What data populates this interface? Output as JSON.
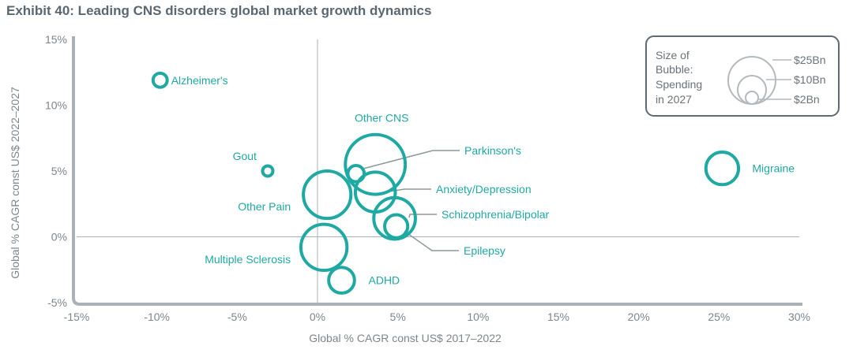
{
  "chart_data": {
    "type": "bubble",
    "title": "Exhibit 40: Leading CNS disorders global market growth dynamics",
    "xlabel": "Global % CAGR const US$ 2017–2022",
    "ylabel": "Global % CAGR const US$ 2022–2027",
    "xlim": [
      -15,
      30
    ],
    "ylim": [
      -5,
      15
    ],
    "x_ticks": [
      -15,
      -10,
      -5,
      0,
      5,
      10,
      15,
      20,
      25,
      30
    ],
    "y_ticks": [
      -5,
      0,
      5,
      10,
      15
    ],
    "x_tick_labels": [
      "-15%",
      "-10%",
      "-5%",
      "0%",
      "5%",
      "10%",
      "15%",
      "20%",
      "25%",
      "30%"
    ],
    "y_tick_labels": [
      "-5%",
      "0%",
      "5%",
      "10%",
      "15%"
    ],
    "size_unit": "Spending in 2027 (US$ Bn)",
    "points": [
      {
        "name": "Alzheimer's",
        "x": -9.8,
        "y": 11.9,
        "size": 1.5
      },
      {
        "name": "Gout",
        "x": -3.1,
        "y": 5.0,
        "size": 0.8
      },
      {
        "name": "Other CNS",
        "x": 3.6,
        "y": 5.5,
        "size": 27
      },
      {
        "name": "Parkinson's",
        "x": 2.4,
        "y": 4.8,
        "size": 2
      },
      {
        "name": "Anxiety/Depression",
        "x": 3.6,
        "y": 3.4,
        "size": 12
      },
      {
        "name": "Other Pain",
        "x": 0.6,
        "y": 3.2,
        "size": 17
      },
      {
        "name": "Schizophrenia/Bipolar",
        "x": 4.8,
        "y": 1.4,
        "size": 13
      },
      {
        "name": "Epilepsy",
        "x": 4.9,
        "y": 0.8,
        "size": 4
      },
      {
        "name": "Multiple Sclerosis",
        "x": 0.4,
        "y": -0.8,
        "size": 16
      },
      {
        "name": "ADHD",
        "x": 1.5,
        "y": -3.3,
        "size": 5
      },
      {
        "name": "Migraine",
        "x": 25.2,
        "y": 5.2,
        "size": 8
      }
    ],
    "legend": {
      "title_lines": [
        "Size of",
        "Bubble:",
        "Spending",
        "in 2027"
      ],
      "entries": [
        "$25Bn",
        "$10Bn",
        "$2Bn"
      ],
      "entry_values": [
        25,
        10,
        2
      ],
      "position": "top-right"
    }
  },
  "colors": {
    "bubble": "#1fa9a3",
    "axis": "#aab2b7",
    "title": "#5b6770",
    "legend_border": "#5f6a72",
    "legend_circle": "#b3b9bd"
  }
}
